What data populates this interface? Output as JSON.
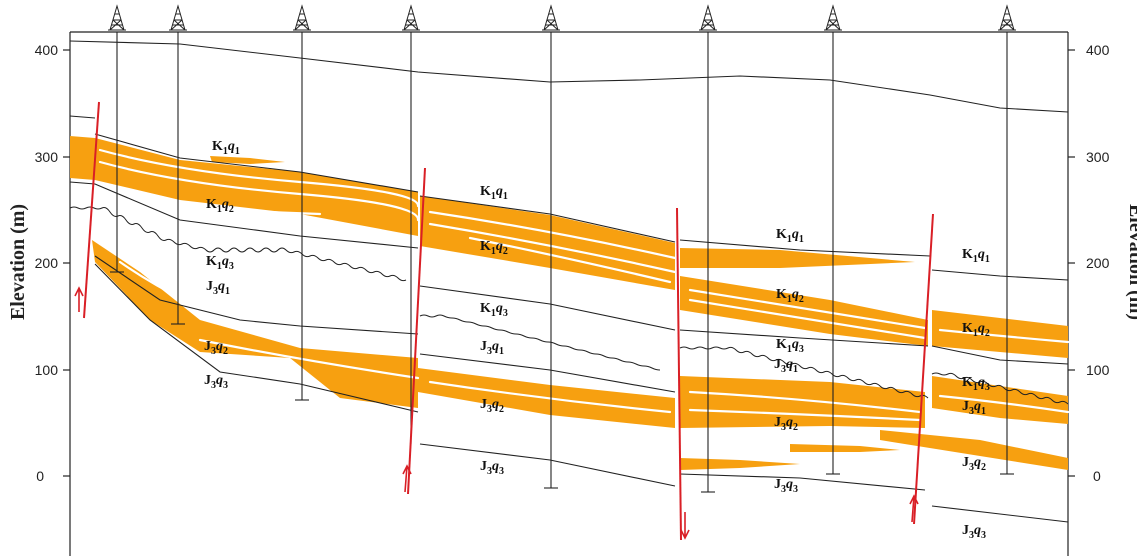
{
  "diagram": {
    "y_axis_title": "Elevation (m)",
    "y_axis_ticks": [
      "400",
      "300",
      "200",
      "100",
      "0"
    ],
    "well_count": 8,
    "colors": {
      "sand": "#f7a010",
      "fault": "#d91f26",
      "line": "#222222",
      "background": "#ffffff"
    },
    "unit_labels": [
      {
        "id": "k1q1-a",
        "base": "K",
        "sub1": "1",
        "ital": "q",
        "sub2": "1"
      },
      {
        "id": "k1q2-a",
        "base": "K",
        "sub1": "1",
        "ital": "q",
        "sub2": "2"
      },
      {
        "id": "k1q3-a",
        "base": "K",
        "sub1": "1",
        "ital": "q",
        "sub2": "3"
      },
      {
        "id": "j3q1-a",
        "base": "J",
        "sub1": "3",
        "ital": "q",
        "sub2": "1"
      },
      {
        "id": "j3q2-a",
        "base": "J",
        "sub1": "3",
        "ital": "q",
        "sub2": "2"
      },
      {
        "id": "j3q3-a",
        "base": "J",
        "sub1": "3",
        "ital": "q",
        "sub2": "3"
      },
      {
        "id": "k1q1-b",
        "base": "K",
        "sub1": "1",
        "ital": "q",
        "sub2": "1"
      },
      {
        "id": "k1q2-b",
        "base": "K",
        "sub1": "1",
        "ital": "q",
        "sub2": "2"
      },
      {
        "id": "k1q3-b",
        "base": "K",
        "sub1": "1",
        "ital": "q",
        "sub2": "3"
      },
      {
        "id": "j3q1-b",
        "base": "J",
        "sub1": "3",
        "ital": "q",
        "sub2": "1"
      },
      {
        "id": "j3q2-b",
        "base": "J",
        "sub1": "3",
        "ital": "q",
        "sub2": "2"
      },
      {
        "id": "j3q3-b",
        "base": "J",
        "sub1": "3",
        "ital": "q",
        "sub2": "3"
      },
      {
        "id": "k1q1-c",
        "base": "K",
        "sub1": "1",
        "ital": "q",
        "sub2": "1"
      },
      {
        "id": "k1q2-c",
        "base": "K",
        "sub1": "1",
        "ital": "q",
        "sub2": "2"
      },
      {
        "id": "k1q3-c",
        "base": "K",
        "sub1": "1",
        "ital": "q",
        "sub2": "3"
      },
      {
        "id": "j3q1-c",
        "base": "J",
        "sub1": "3",
        "ital": "q",
        "sub2": "1"
      },
      {
        "id": "j3q2-c",
        "base": "J",
        "sub1": "3",
        "ital": "q",
        "sub2": "2"
      },
      {
        "id": "j3q3-c",
        "base": "J",
        "sub1": "3",
        "ital": "q",
        "sub2": "3"
      },
      {
        "id": "k1q1-d",
        "base": "K",
        "sub1": "1",
        "ital": "q",
        "sub2": "1"
      },
      {
        "id": "k1q2-d",
        "base": "K",
        "sub1": "1",
        "ital": "q",
        "sub2": "2"
      },
      {
        "id": "k1q3-d",
        "base": "K",
        "sub1": "1",
        "ital": "q",
        "sub2": "3"
      },
      {
        "id": "j3q1-d",
        "base": "J",
        "sub1": "3",
        "ital": "q",
        "sub2": "1"
      },
      {
        "id": "j3q2-d",
        "base": "J",
        "sub1": "3",
        "ital": "q",
        "sub2": "2"
      },
      {
        "id": "j3q3-d",
        "base": "J",
        "sub1": "3",
        "ital": "q",
        "sub2": "3"
      }
    ]
  }
}
